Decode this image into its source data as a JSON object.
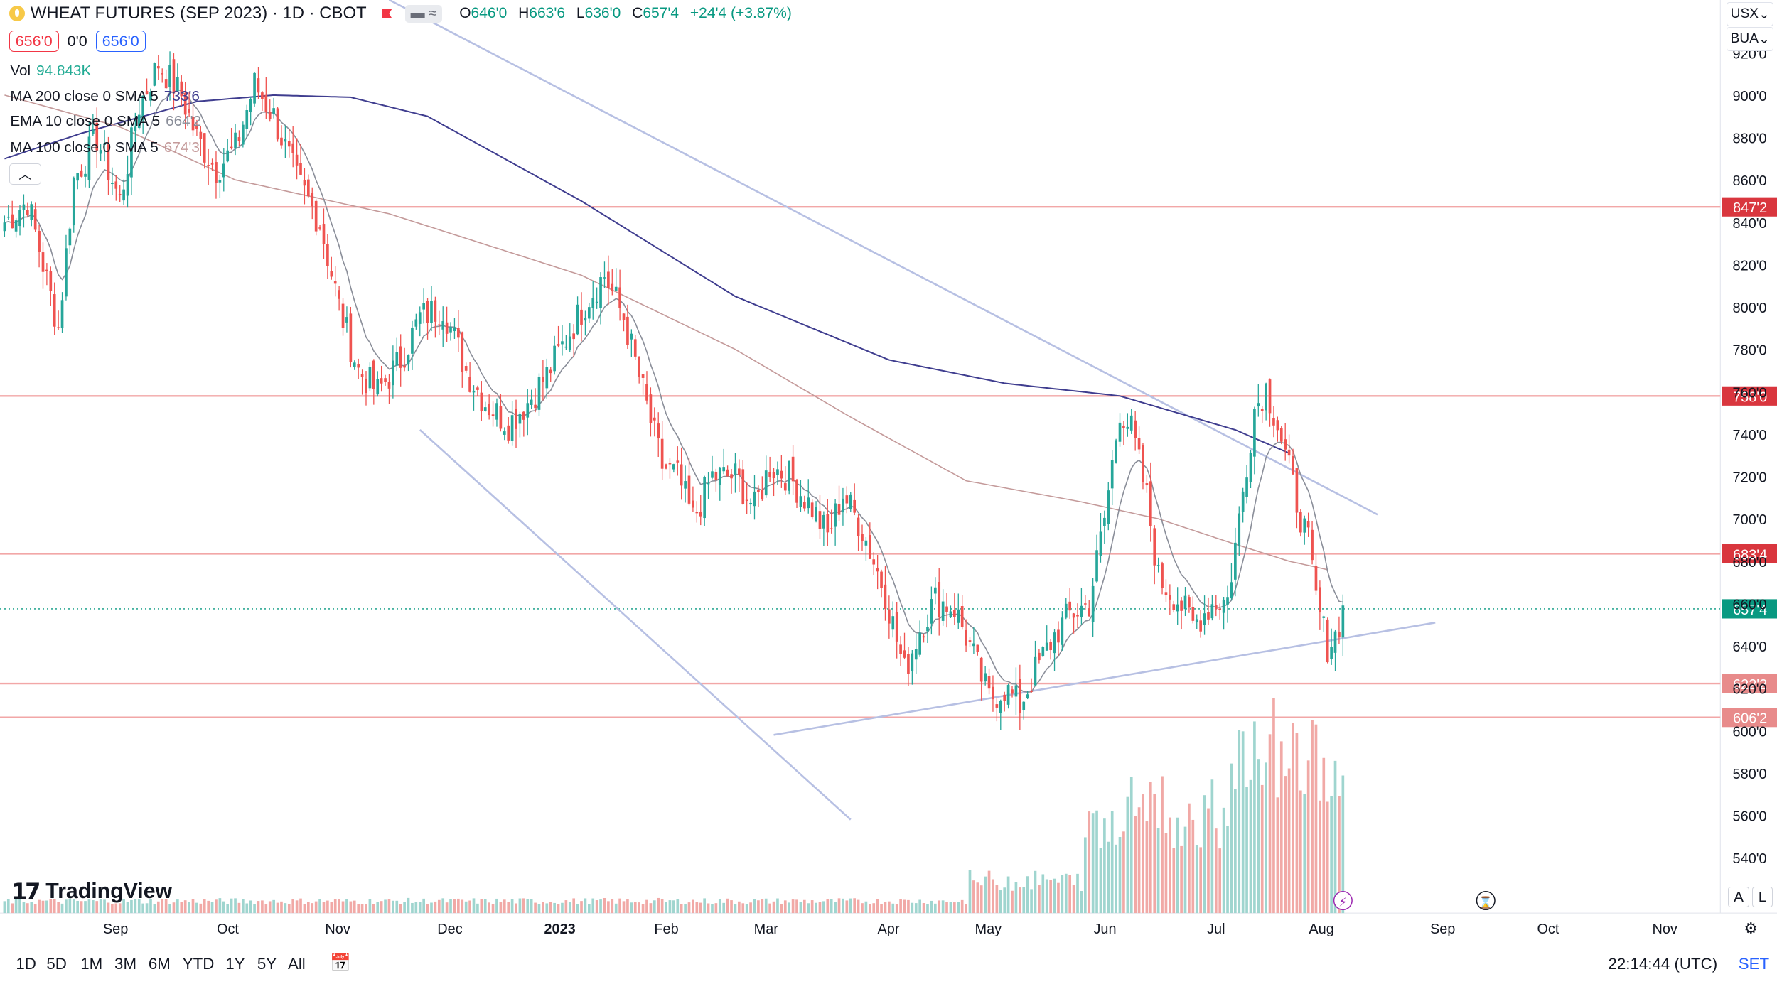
{
  "header": {
    "title": "WHEAT FUTURES (SEP 2023) · 1D · CBOT",
    "indicator_pill": "≈",
    "ohlc": [
      {
        "label": "O",
        "value": "646'0"
      },
      {
        "label": "H",
        "value": "663'6"
      },
      {
        "label": "L",
        "value": "636'0"
      },
      {
        "label": "C",
        "value": "657'4"
      },
      {
        "label": "",
        "value": "+24'4 (+3.87%)"
      }
    ],
    "sell_price": "656'0",
    "spread": "0'0",
    "buy_price": "656'0"
  },
  "legend": [
    {
      "name": "Vol",
      "value": "94.843K",
      "color": "#22ab94"
    },
    {
      "name": "MA 200 close 0 SMA 5",
      "value": "733'6",
      "color": "#3f3d8f"
    },
    {
      "name": "EMA 10 close 0 SMA 5",
      "value": "664'2",
      "color": "#8a8e99"
    },
    {
      "name": "MA 100 close 0 SMA 5",
      "value": "674'3",
      "color": "#c49a9a"
    }
  ],
  "right_toolbar": {
    "currency": "USX",
    "unit": "BUA"
  },
  "logo_text": "TradingView",
  "axis_buttons": [
    "A",
    "L"
  ],
  "timeframes": [
    "1D",
    "5D",
    "1M",
    "3M",
    "6M",
    "YTD",
    "1Y",
    "5Y",
    "All"
  ],
  "clock": "22:14:44 (UTC)",
  "session": "SET",
  "colors": {
    "up": "#26a69a",
    "down": "#ef5350",
    "hline": "#f2a7a7",
    "trend": "#b7c0e3",
    "ma200": "#3f3d8f",
    "ma100": "#c49a9a",
    "ema10": "#8a8e99"
  },
  "chart_data": {
    "type": "candlestick",
    "title": "WHEAT FUTURES (SEP 2023)",
    "y_ticks": [
      "540'0",
      "560'0",
      "580'0",
      "600'0",
      "620'0",
      "640'0",
      "660'0",
      "680'0",
      "700'0",
      "720'0",
      "740'0",
      "760'0",
      "780'0",
      "800'0",
      "820'0",
      "840'0",
      "860'0",
      "880'0",
      "900'0",
      "920'0"
    ],
    "y_range": [
      525,
      945
    ],
    "x_ticks": [
      "Sep",
      "Oct",
      "Nov",
      "Dec",
      "2023",
      "Feb",
      "Mar",
      "Apr",
      "May",
      "Jun",
      "Jul",
      "Aug",
      "Sep",
      "Oct",
      "Nov"
    ],
    "price_levels": [
      {
        "label": "847'2",
        "value": 847.25
      },
      {
        "label": "758'0",
        "value": 758.0
      },
      {
        "label": "683'4",
        "value": 683.5
      },
      {
        "label": "622'2",
        "value": 622.25
      },
      {
        "label": "606'2",
        "value": 606.25
      }
    ],
    "last_price": {
      "label": "657'4",
      "value": 657.5
    },
    "close_anchors": [
      [
        0,
        840
      ],
      [
        6,
        850
      ],
      [
        10,
        820
      ],
      [
        14,
        790
      ],
      [
        18,
        860
      ],
      [
        24,
        880
      ],
      [
        30,
        850
      ],
      [
        35,
        895
      ],
      [
        40,
        915
      ],
      [
        46,
        900
      ],
      [
        50,
        880
      ],
      [
        55,
        865
      ],
      [
        60,
        875
      ],
      [
        65,
        905
      ],
      [
        70,
        890
      ],
      [
        76,
        860
      ],
      [
        82,
        840
      ],
      [
        87,
        800
      ],
      [
        92,
        770
      ],
      [
        97,
        760
      ],
      [
        103,
        775
      ],
      [
        108,
        795
      ],
      [
        114,
        800
      ],
      [
        120,
        770
      ],
      [
        125,
        755
      ],
      [
        131,
        745
      ],
      [
        136,
        755
      ],
      [
        141,
        768
      ],
      [
        146,
        785
      ],
      [
        152,
        805
      ],
      [
        156,
        815
      ],
      [
        161,
        795
      ],
      [
        166,
        760
      ],
      [
        171,
        725
      ],
      [
        175,
        720
      ],
      [
        179,
        700
      ],
      [
        184,
        720
      ],
      [
        190,
        720
      ],
      [
        195,
        705
      ],
      [
        199,
        725
      ],
      [
        204,
        720
      ],
      [
        210,
        705
      ],
      [
        214,
        692
      ],
      [
        218,
        712
      ],
      [
        223,
        695
      ],
      [
        229,
        665
      ],
      [
        234,
        628
      ],
      [
        238,
        648
      ],
      [
        242,
        662
      ],
      [
        247,
        658
      ],
      [
        251,
        640
      ],
      [
        256,
        615
      ],
      [
        260,
        620
      ],
      [
        264,
        612
      ],
      [
        268,
        628
      ],
      [
        273,
        645
      ],
      [
        277,
        655
      ],
      [
        282,
        660
      ],
      [
        286,
        700
      ],
      [
        290,
        752
      ],
      [
        293,
        742
      ],
      [
        297,
        710
      ],
      [
        300,
        672
      ],
      [
        305,
        662
      ],
      [
        309,
        650
      ],
      [
        314,
        660
      ],
      [
        318,
        662
      ],
      [
        321,
        700
      ],
      [
        325,
        752
      ],
      [
        328,
        762
      ],
      [
        331,
        745
      ],
      [
        335,
        715
      ],
      [
        339,
        688
      ],
      [
        341,
        662
      ],
      [
        344,
        640
      ],
      [
        346,
        645
      ],
      [
        348,
        657
      ]
    ],
    "ma200_anchors": [
      [
        0,
        870
      ],
      [
        20,
        882
      ],
      [
        50,
        897
      ],
      [
        70,
        900
      ],
      [
        90,
        899
      ],
      [
        110,
        890
      ],
      [
        150,
        850
      ],
      [
        190,
        805
      ],
      [
        230,
        775
      ],
      [
        260,
        764
      ],
      [
        290,
        758
      ],
      [
        320,
        742
      ],
      [
        334,
        731
      ]
    ],
    "ma100_anchors": [
      [
        0,
        900
      ],
      [
        30,
        885
      ],
      [
        60,
        860
      ],
      [
        100,
        844
      ],
      [
        150,
        815
      ],
      [
        190,
        780
      ],
      [
        220,
        748
      ],
      [
        250,
        718
      ],
      [
        280,
        708
      ],
      [
        300,
        700
      ],
      [
        320,
        688
      ],
      [
        334,
        680
      ],
      [
        344,
        676
      ]
    ],
    "trendlines": [
      {
        "from": [
          100,
          945
        ],
        "to": [
          357,
          702
        ]
      },
      {
        "from": [
          108,
          742
        ],
        "to": [
          220,
          558
        ]
      },
      {
        "from": [
          200,
          598
        ],
        "to": [
          372,
          651
        ]
      }
    ],
    "volume_scale_max": 250000
  }
}
